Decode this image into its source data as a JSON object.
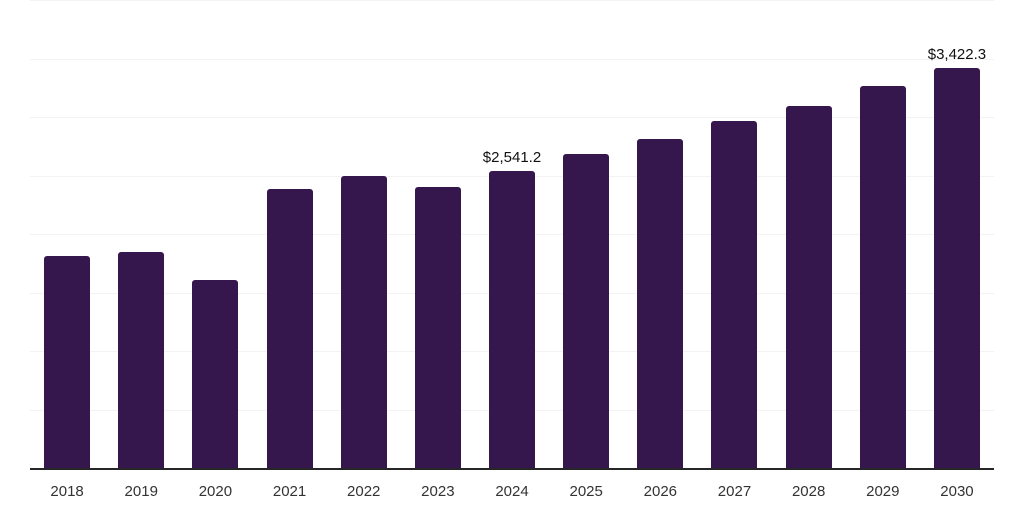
{
  "chart_data": {
    "type": "bar",
    "title": "",
    "xlabel": "",
    "ylabel": "",
    "categories": [
      "2018",
      "2019",
      "2020",
      "2021",
      "2022",
      "2023",
      "2024",
      "2025",
      "2026",
      "2027",
      "2028",
      "2029",
      "2030"
    ],
    "values": [
      1808,
      1850,
      1603,
      2389,
      2500,
      2406,
      2541.2,
      2688,
      2816,
      2962,
      3098,
      3261,
      3422.3
    ],
    "data_labels": {
      "2024": "$2,541.2",
      "2030": "$3,422.3"
    },
    "ylim": [
      0,
      4000
    ],
    "gridline_interval": 500,
    "grid": true,
    "legend_position": "none",
    "y_tick_labels_visible": false,
    "colors": {
      "bar": "#35164D",
      "axis_line": "#262626",
      "gridline": "#f3f3f3",
      "x_tick_label": "#333333",
      "data_label": "#111111",
      "background": "#ffffff"
    }
  }
}
